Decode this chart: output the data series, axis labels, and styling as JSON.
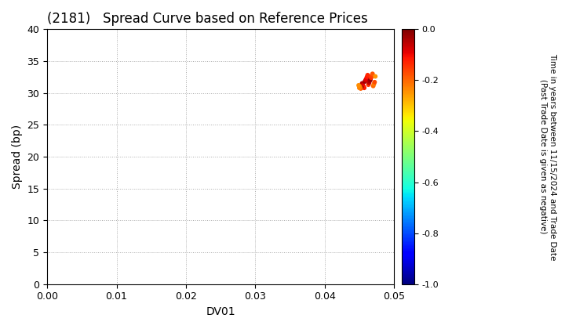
{
  "title": "(2181)   Spread Curve based on Reference Prices",
  "xlabel": "DV01",
  "ylabel": "Spread (bp)",
  "xlim": [
    0.0,
    0.05
  ],
  "ylim": [
    0,
    40
  ],
  "xticks": [
    0.0,
    0.01,
    0.02,
    0.03,
    0.04,
    0.05
  ],
  "yticks": [
    0,
    5,
    10,
    15,
    20,
    25,
    30,
    35,
    40
  ],
  "colorbar_label_line1": "Time in years between 11/15/2024 and Trade Date",
  "colorbar_label_line2": "(Past Trade Date is given as negative)",
  "colorbar_vmin": -1.0,
  "colorbar_vmax": 0.0,
  "colorbar_ticks": [
    0.0,
    -0.2,
    -0.4,
    -0.6,
    -0.8,
    -1.0
  ],
  "scatter_dv01": [
    0.0454,
    0.0455,
    0.0456,
    0.0457,
    0.0458,
    0.0459,
    0.046,
    0.0461,
    0.0462,
    0.0463,
    0.0464,
    0.0465,
    0.0466,
    0.0467,
    0.0468,
    0.0469,
    0.047,
    0.0471,
    0.0472,
    0.0453,
    0.0452,
    0.0451,
    0.045,
    0.0449,
    0.0473
  ],
  "scatter_spread": [
    31.5,
    31.2,
    31.0,
    30.8,
    31.8,
    32.0,
    32.2,
    32.5,
    32.8,
    31.3,
    31.6,
    31.9,
    32.1,
    32.4,
    32.7,
    33.0,
    31.1,
    31.4,
    31.7,
    30.9,
    30.7,
    31.0,
    30.8,
    31.2,
    32.6
  ],
  "scatter_time": [
    -0.05,
    -0.08,
    -0.1,
    -0.12,
    -0.03,
    -0.07,
    -0.09,
    -0.11,
    -0.13,
    -0.15,
    -0.06,
    -0.04,
    -0.02,
    -0.14,
    -0.16,
    -0.18,
    -0.2,
    -0.22,
    -0.17,
    -0.01,
    -0.19,
    -0.21,
    -0.23,
    -0.24,
    -0.25
  ],
  "background_color": "#ffffff",
  "grid_color": "#aaaaaa",
  "cmap": "jet"
}
